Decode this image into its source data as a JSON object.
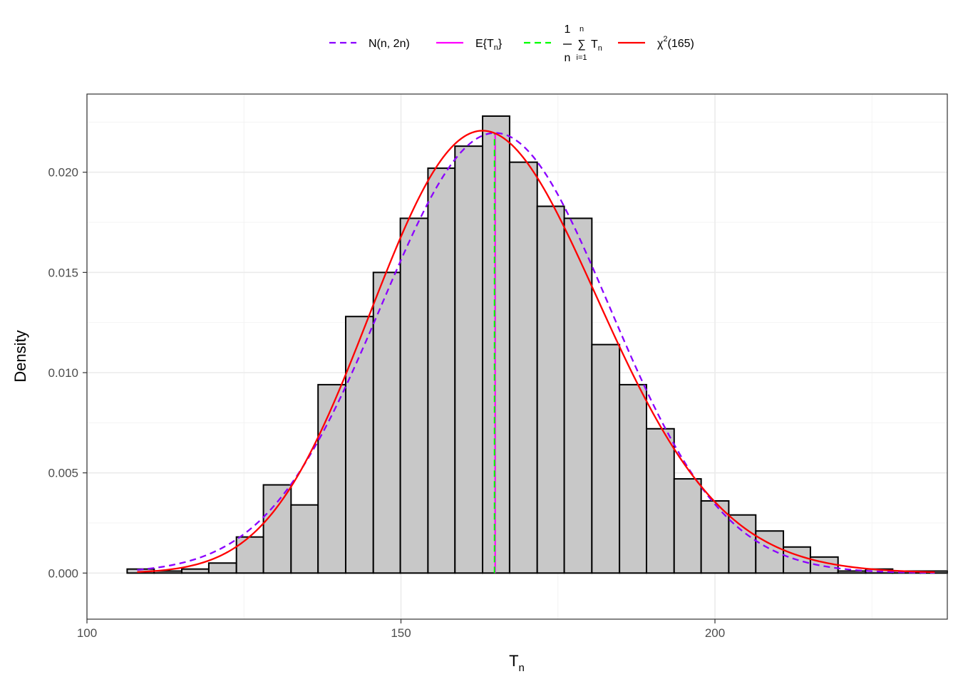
{
  "chart_data": {
    "type": "bar",
    "title": "",
    "xlabel": "T",
    "xlabel_subscript": "n",
    "ylabel": "Density",
    "xlim": [
      100,
      237
    ],
    "ylim": [
      -0.0023,
      0.0239
    ],
    "x_ticks": [
      100,
      150,
      200
    ],
    "y_ticks": [
      0.0,
      0.005,
      0.01,
      0.015,
      0.02
    ],
    "y_tick_labels": [
      "0.000",
      "0.005",
      "0.010",
      "0.015",
      "0.020"
    ],
    "grid": true,
    "legend_position": "top",
    "histogram": {
      "bins": [
        {
          "x0": 106.4,
          "x1": 110.7,
          "density": 0.0002
        },
        {
          "x0": 110.7,
          "x1": 115.1,
          "density": 0.0001
        },
        {
          "x0": 115.1,
          "x1": 119.4,
          "density": 0.0002
        },
        {
          "x0": 119.4,
          "x1": 123.8,
          "density": 0.0005
        },
        {
          "x0": 123.8,
          "x1": 128.1,
          "density": 0.0018
        },
        {
          "x0": 128.1,
          "x1": 132.5,
          "density": 0.0044
        },
        {
          "x0": 132.5,
          "x1": 136.8,
          "density": 0.0034
        },
        {
          "x0": 136.8,
          "x1": 141.2,
          "density": 0.0094
        },
        {
          "x0": 141.2,
          "x1": 145.6,
          "density": 0.0128
        },
        {
          "x0": 145.6,
          "x1": 149.9,
          "density": 0.015
        },
        {
          "x0": 149.9,
          "x1": 154.3,
          "density": 0.0177
        },
        {
          "x0": 154.3,
          "x1": 158.6,
          "density": 0.0202
        },
        {
          "x0": 158.6,
          "x1": 163.0,
          "density": 0.0213
        },
        {
          "x0": 163.0,
          "x1": 167.3,
          "density": 0.0228
        },
        {
          "x0": 167.3,
          "x1": 171.7,
          "density": 0.0205
        },
        {
          "x0": 171.7,
          "x1": 176.0,
          "density": 0.0183
        },
        {
          "x0": 176.0,
          "x1": 180.4,
          "density": 0.0177
        },
        {
          "x0": 180.4,
          "x1": 184.8,
          "density": 0.0114
        },
        {
          "x0": 184.8,
          "x1": 189.1,
          "density": 0.0094
        },
        {
          "x0": 189.1,
          "x1": 193.5,
          "density": 0.0072
        },
        {
          "x0": 193.5,
          "x1": 197.8,
          "density": 0.0047
        },
        {
          "x0": 197.8,
          "x1": 202.2,
          "density": 0.0036
        },
        {
          "x0": 202.2,
          "x1": 206.5,
          "density": 0.0029
        },
        {
          "x0": 206.5,
          "x1": 210.9,
          "density": 0.0021
        },
        {
          "x0": 210.9,
          "x1": 215.2,
          "density": 0.0013
        },
        {
          "x0": 215.2,
          "x1": 219.6,
          "density": 0.0008
        },
        {
          "x0": 219.6,
          "x1": 224.0,
          "density": 0.0001
        },
        {
          "x0": 224.0,
          "x1": 228.3,
          "density": 0.0002
        },
        {
          "x0": 228.3,
          "x1": 232.7,
          "density": 0.0001
        },
        {
          "x0": 232.7,
          "x1": 237.0,
          "density": 0.0001
        }
      ],
      "fill": "#c8c8c8",
      "stroke": "#000000"
    },
    "series": [
      {
        "key": "normal",
        "kind": "normal-density",
        "mean": 165,
        "variance": 330,
        "x_range": [
          108,
          235
        ],
        "color": "#8b00ff",
        "dash": "dashed"
      },
      {
        "key": "expected",
        "kind": "vline",
        "x": 165,
        "y_range": [
          0,
          0.0219
        ],
        "color": "#ff00ff",
        "dash": "solid"
      },
      {
        "key": "sample-mean",
        "kind": "vline",
        "x": 164.9,
        "y_range": [
          0,
          0.0219
        ],
        "color": "#00ff00",
        "dash": "dashed"
      },
      {
        "key": "chisq",
        "kind": "chisq-density",
        "df": 165,
        "x_range": [
          108,
          235
        ],
        "color": "#ff0000",
        "dash": "solid"
      }
    ],
    "legend": [
      {
        "key": "normal",
        "text": "N(n, 2n)"
      },
      {
        "key": "expected",
        "text_main": "E{T",
        "text_sub": "n",
        "text_close": "}"
      },
      {
        "key": "sample-mean",
        "frac_top": "1",
        "frac_bottom": "n",
        "sum_top": "n",
        "sum_sym": "∑",
        "sum_bottom": "i=1",
        "term_main": "T",
        "term_sub": "n"
      },
      {
        "key": "chisq",
        "text_main": "χ",
        "text_sup": "2",
        "text_rest": "(165)"
      }
    ]
  }
}
